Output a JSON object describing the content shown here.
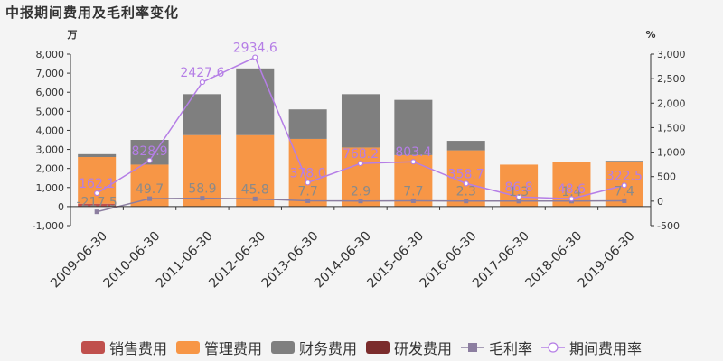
{
  "chart_data": {
    "type": "bar",
    "title": "中报期间费用及毛利率变化",
    "left_unit": "万",
    "right_unit": "%",
    "categories": [
      "2009-06-30",
      "2010-06-30",
      "2011-06-30",
      "2012-06-30",
      "2013-06-30",
      "2014-06-30",
      "2015-06-30",
      "2016-06-30",
      "2017-06-30",
      "2018-06-30",
      "2019-06-30"
    ],
    "left_axis": {
      "min": -1000,
      "max": 8000,
      "ticks": [
        "-1,000",
        "0",
        "1,000",
        "2,000",
        "3,000",
        "4,000",
        "5,000",
        "6,000",
        "7,000",
        "8,000"
      ]
    },
    "right_axis": {
      "min": -500,
      "max": 3000,
      "ticks": [
        "-500",
        "0",
        "500",
        "1,000",
        "1,500",
        "2,000",
        "2,500",
        "3,000"
      ]
    },
    "series": [
      {
        "name": "销售费用",
        "type": "bar",
        "axis": "left",
        "color": "#c0504d",
        "values": [
          150,
          0,
          0,
          0,
          0,
          0,
          0,
          0,
          0,
          0,
          0
        ]
      },
      {
        "name": "管理费用",
        "type": "bar",
        "axis": "left",
        "color": "#f79646",
        "values": [
          2450,
          2200,
          3750,
          3750,
          3550,
          3100,
          2700,
          2950,
          2200,
          2350,
          2350
        ]
      },
      {
        "name": "财务费用",
        "type": "bar",
        "axis": "left",
        "color": "#7f7f7f",
        "values": [
          150,
          1300,
          2150,
          3500,
          1550,
          2800,
          2900,
          500,
          0,
          0,
          50
        ]
      },
      {
        "name": "研发费用",
        "type": "bar",
        "axis": "left",
        "color": "#7b2c2c",
        "values": [
          0,
          0,
          0,
          0,
          0,
          0,
          0,
          0,
          0,
          0,
          0
        ]
      },
      {
        "name": "毛利率",
        "type": "line",
        "axis": "right",
        "color": "#8c7ea0",
        "marker": "square",
        "values": [
          -217.5,
          49.7,
          58.9,
          45.8,
          7.7,
          2.9,
          7.7,
          2.3,
          1.3,
          1.4,
          7.4
        ],
        "labels": [
          "-217.5",
          "49.7",
          "58.9",
          "45.8",
          "7.7",
          "2.9",
          "7.7",
          "2.3",
          "1.3",
          "1.4",
          "7.4"
        ]
      },
      {
        "name": "期间费用率",
        "type": "line",
        "axis": "right",
        "color": "#b57ee6",
        "marker": "circle",
        "values": [
          162.1,
          828.9,
          2427.6,
          2934.6,
          378.0,
          768.2,
          803.4,
          358.7,
          86.8,
          48.6,
          322.5
        ],
        "labels": [
          "162.1",
          "828.9",
          "2427.6",
          "2934.6",
          "378.0",
          "768.2",
          "803.4",
          "358.7",
          "86.8",
          "48.6",
          "322.5"
        ]
      }
    ],
    "legend_position": "bottom-center"
  }
}
